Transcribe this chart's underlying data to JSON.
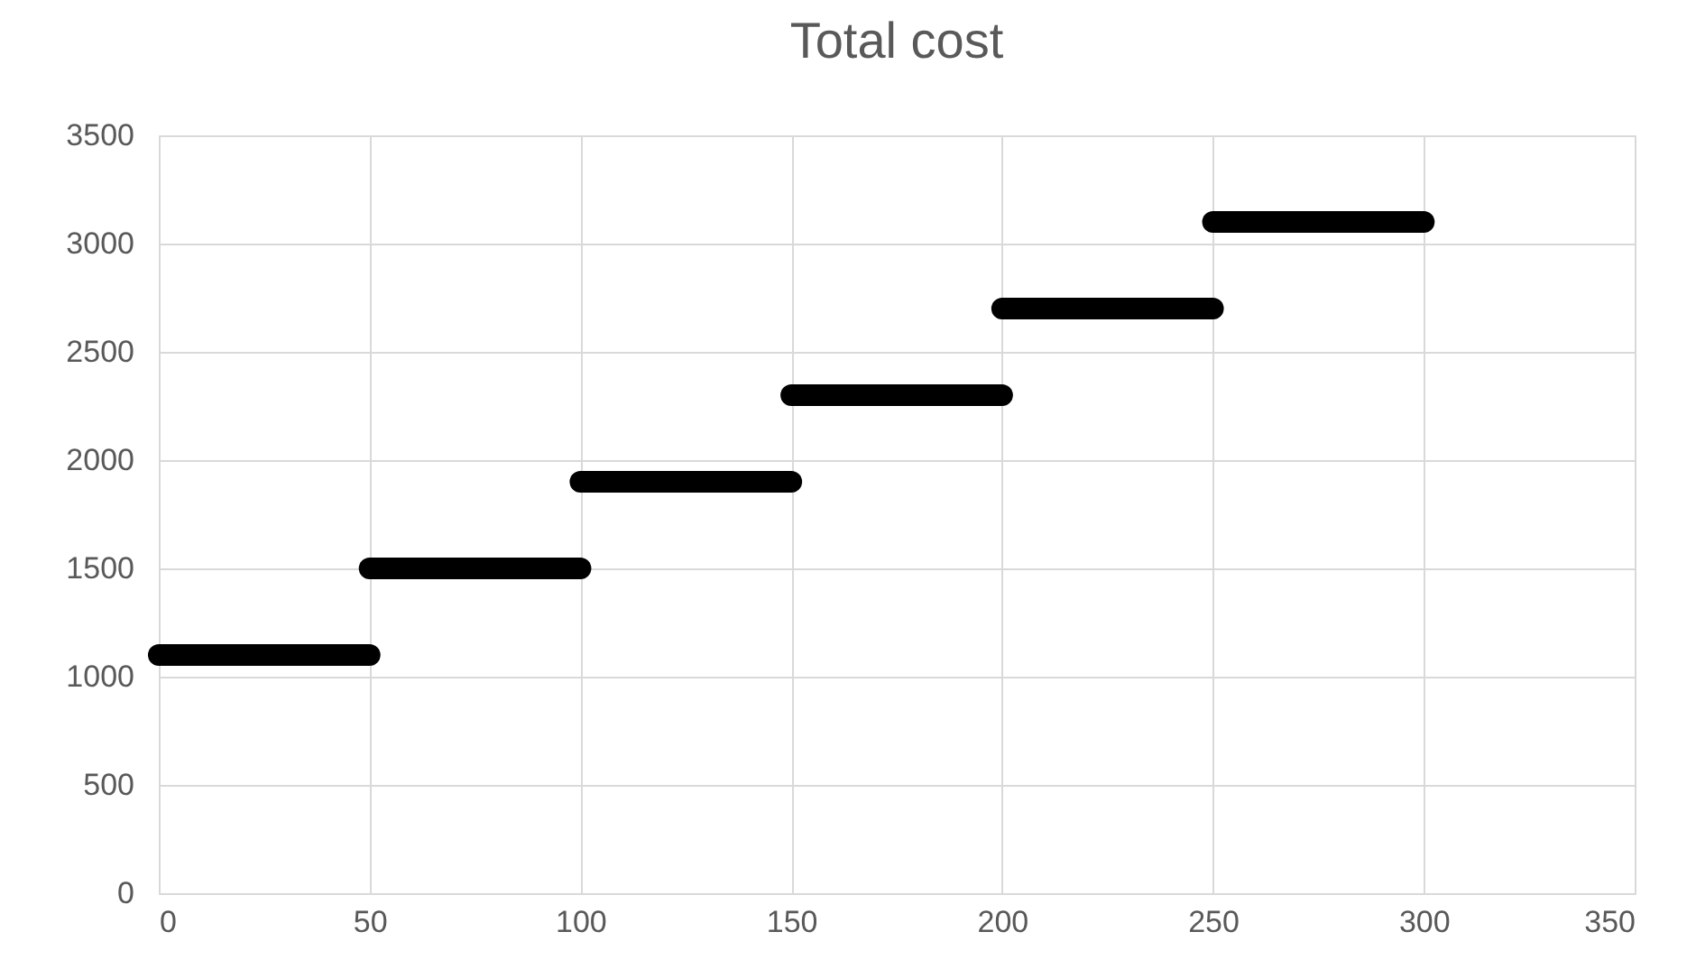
{
  "chart_data": {
    "type": "line",
    "title": "Total cost",
    "series": [
      {
        "color": "#000000",
        "x": [
          0,
          50
        ],
        "values": [
          1100,
          1100
        ]
      },
      {
        "color": "#000000",
        "x": [
          50,
          100
        ],
        "values": [
          1500,
          1500
        ]
      },
      {
        "color": "#000000",
        "x": [
          100,
          150
        ],
        "values": [
          1900,
          1900
        ]
      },
      {
        "color": "#000000",
        "x": [
          150,
          200
        ],
        "values": [
          2300,
          2300
        ]
      },
      {
        "color": "#000000",
        "x": [
          200,
          250
        ],
        "values": [
          2700,
          2700
        ]
      },
      {
        "color": "#000000",
        "x": [
          250,
          300
        ],
        "values": [
          3100,
          3100
        ]
      }
    ],
    "xlim": [
      0,
      350
    ],
    "xticks": [
      0,
      50,
      100,
      150,
      200,
      250,
      300,
      350
    ],
    "ylim": [
      0,
      3500
    ],
    "yticks": [
      0,
      500,
      1000,
      1500,
      2000,
      2500,
      3000,
      3500
    ],
    "grid": true,
    "line_style": "solid"
  }
}
